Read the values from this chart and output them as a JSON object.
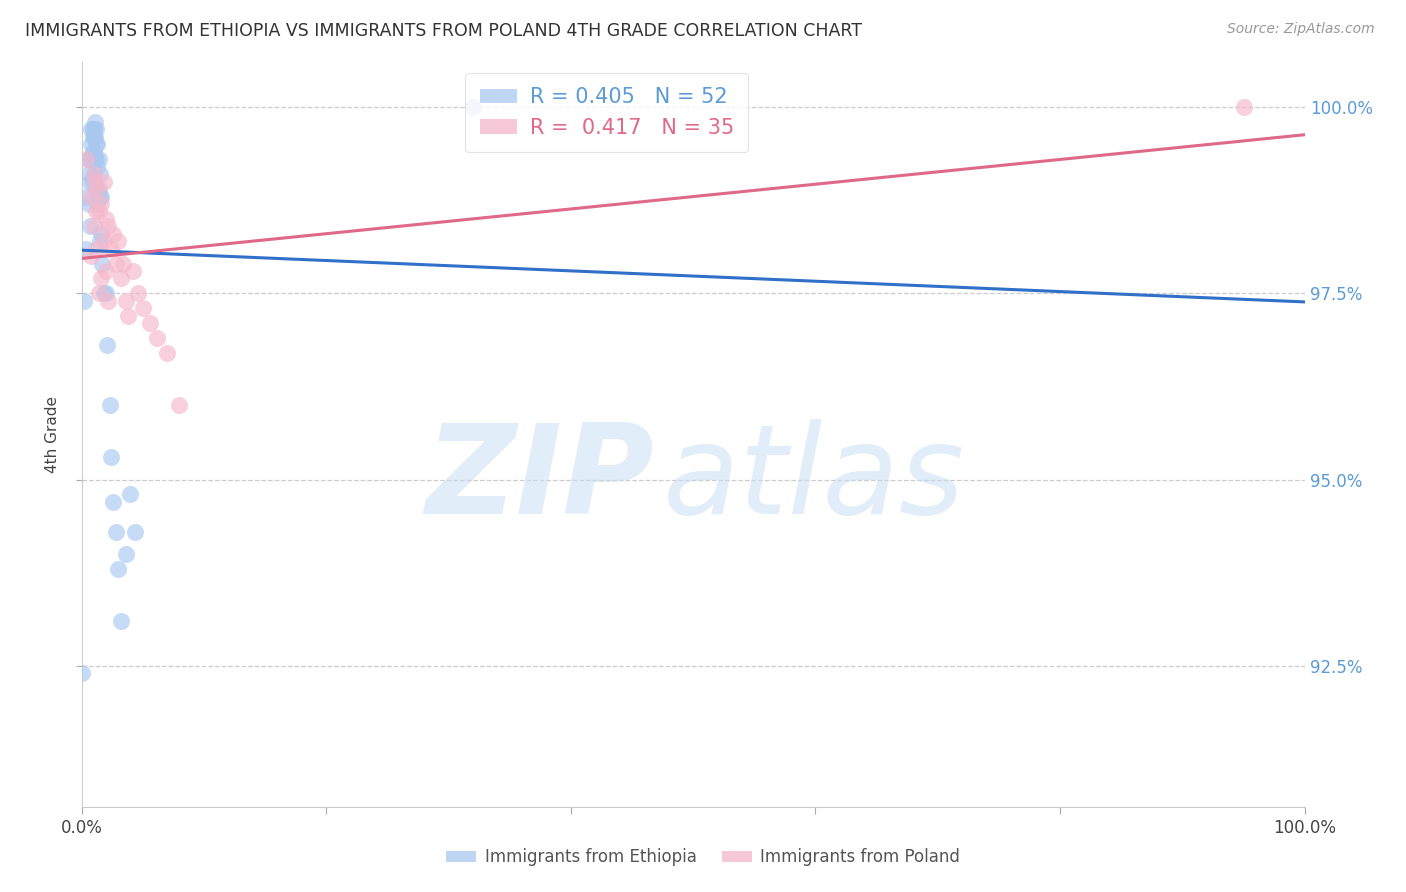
{
  "title": "IMMIGRANTS FROM ETHIOPIA VS IMMIGRANTS FROM POLAND 4TH GRADE CORRELATION CHART",
  "source": "Source: ZipAtlas.com",
  "ylabel": "4th Grade",
  "legend_blue_label": "Immigrants from Ethiopia",
  "legend_pink_label": "Immigrants from Poland",
  "R_blue": "0.405",
  "N_blue": "52",
  "R_pink": "0.417",
  "N_pink": "35",
  "blue_color": "#A8C8F0",
  "pink_color": "#F5B8CB",
  "blue_line_color": "#3070C8",
  "pink_line_color": "#E06888",
  "blue_scatter_x": [
    0.0,
    0.002,
    0.004,
    0.004,
    0.006,
    0.006,
    0.006,
    0.007,
    0.007,
    0.007,
    0.008,
    0.008,
    0.008,
    0.009,
    0.009,
    0.009,
    0.009,
    0.01,
    0.01,
    0.01,
    0.01,
    0.011,
    0.011,
    0.011,
    0.012,
    0.012,
    0.012,
    0.012,
    0.013,
    0.013,
    0.013,
    0.014,
    0.014,
    0.015,
    0.015,
    0.015,
    0.016,
    0.016,
    0.017,
    0.018,
    0.02,
    0.021,
    0.023,
    0.024,
    0.026,
    0.028,
    0.03,
    0.032,
    0.036,
    0.04,
    0.044,
    0.32
  ],
  "blue_scatter_y": [
    0.924,
    0.974,
    0.988,
    0.981,
    0.993,
    0.991,
    0.987,
    0.993,
    0.99,
    0.984,
    0.997,
    0.995,
    0.993,
    0.997,
    0.996,
    0.994,
    0.99,
    0.997,
    0.996,
    0.994,
    0.991,
    0.998,
    0.996,
    0.993,
    0.997,
    0.995,
    0.993,
    0.989,
    0.995,
    0.992,
    0.987,
    0.993,
    0.989,
    0.991,
    0.988,
    0.982,
    0.988,
    0.983,
    0.979,
    0.975,
    0.975,
    0.968,
    0.96,
    0.953,
    0.947,
    0.943,
    0.938,
    0.931,
    0.94,
    0.948,
    0.943,
    1.0
  ],
  "pink_scatter_x": [
    0.004,
    0.008,
    0.008,
    0.01,
    0.01,
    0.011,
    0.012,
    0.012,
    0.013,
    0.014,
    0.014,
    0.016,
    0.016,
    0.018,
    0.018,
    0.02,
    0.02,
    0.022,
    0.022,
    0.024,
    0.026,
    0.028,
    0.03,
    0.032,
    0.034,
    0.036,
    0.038,
    0.042,
    0.046,
    0.05,
    0.056,
    0.062,
    0.07,
    0.08,
    0.95
  ],
  "pink_scatter_y": [
    0.993,
    0.98,
    0.988,
    0.991,
    0.984,
    0.99,
    0.986,
    0.981,
    0.989,
    0.986,
    0.975,
    0.987,
    0.977,
    0.99,
    0.982,
    0.985,
    0.978,
    0.984,
    0.974,
    0.981,
    0.983,
    0.979,
    0.982,
    0.977,
    0.979,
    0.974,
    0.972,
    0.978,
    0.975,
    0.973,
    0.971,
    0.969,
    0.967,
    0.96,
    1.0
  ],
  "xlim": [
    0.0,
    1.0
  ],
  "ylim": [
    0.906,
    1.006
  ],
  "y_tick_values": [
    0.925,
    0.95,
    0.975,
    1.0
  ],
  "y_tick_labels_right": [
    "92.5%",
    "95.0%",
    "97.5%",
    "100.0%"
  ],
  "x_tick_positions": [
    0.0,
    0.2,
    0.4,
    0.6,
    0.8,
    1.0
  ],
  "x_tick_labels": [
    "0.0%",
    "",
    "",
    "",
    "",
    "100.0%"
  ],
  "background_color": "#FFFFFF",
  "grid_color": "#CCCCCC",
  "title_color": "#333333",
  "source_color": "#999999",
  "ytick_right_color": "#5B9BD5",
  "ylabel_color": "#444444"
}
